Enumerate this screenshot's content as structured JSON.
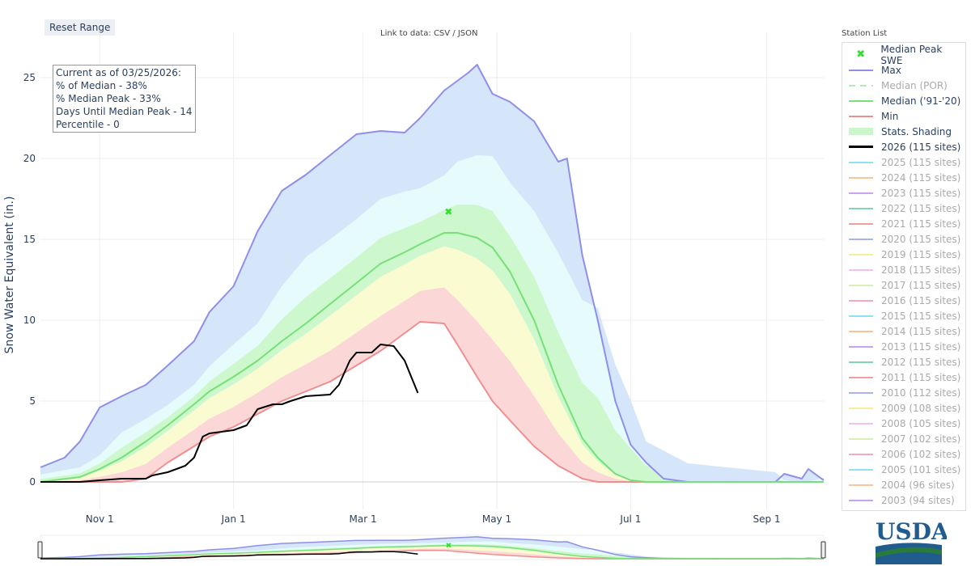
{
  "controls": {
    "reset": "Reset Range",
    "link": "Link to data: CSV / JSON"
  },
  "info": [
    "Current as of 03/25/2026:",
    "% of Median - 38%",
    "% Median Peak - 33%",
    "Days Until Median Peak - 14",
    "Percentile - 0"
  ],
  "legend_title": "Station List",
  "legend": [
    {
      "label": "Median Peak SWE",
      "color": "#33dd33",
      "kind": "marker",
      "on": true
    },
    {
      "label": "Max",
      "color": "#8f8fe8",
      "kind": "line",
      "on": true
    },
    {
      "label": "Median (POR)",
      "color": "#b8e8b8",
      "kind": "dash",
      "on": false
    },
    {
      "label": "Median ('91-'20)",
      "color": "#77e077",
      "kind": "line",
      "on": true
    },
    {
      "label": "Min",
      "color": "#ee8f8f",
      "kind": "line",
      "on": true
    },
    {
      "label": "Stats. Shading",
      "color": "#ccf5cc",
      "kind": "band",
      "on": true
    },
    {
      "label": "2026 (115 sites)",
      "color": "#000000",
      "kind": "line",
      "on": true
    },
    {
      "label": "2025 (115 sites)",
      "color": "#8fe3f0",
      "kind": "line",
      "on": false
    },
    {
      "label": "2024 (115 sites)",
      "color": "#f7c59a",
      "kind": "line",
      "on": false
    },
    {
      "label": "2023 (115 sites)",
      "color": "#c9a4f0",
      "kind": "line",
      "on": false
    },
    {
      "label": "2022 (115 sites)",
      "color": "#7fd8b0",
      "kind": "line",
      "on": false
    },
    {
      "label": "2021 (115 sites)",
      "color": "#f0a0a0",
      "kind": "line",
      "on": false
    },
    {
      "label": "2020 (115 sites)",
      "color": "#a9b4ef",
      "kind": "line",
      "on": false
    },
    {
      "label": "2019 (115 sites)",
      "color": "#f5ef9a",
      "kind": "line",
      "on": false
    },
    {
      "label": "2018 (115 sites)",
      "color": "#f5c0ef",
      "kind": "line",
      "on": false
    },
    {
      "label": "2017 (115 sites)",
      "color": "#d7f0b4",
      "kind": "line",
      "on": false
    },
    {
      "label": "2016 (115 sites)",
      "color": "#f5a8c0",
      "kind": "line",
      "on": false
    },
    {
      "label": "2015 (115 sites)",
      "color": "#8fe3f0",
      "kind": "line",
      "on": false
    },
    {
      "label": "2014 (115 sites)",
      "color": "#f7c59a",
      "kind": "line",
      "on": false
    },
    {
      "label": "2013 (115 sites)",
      "color": "#c9a4f0",
      "kind": "line",
      "on": false
    },
    {
      "label": "2012 (115 sites)",
      "color": "#7fd8b0",
      "kind": "line",
      "on": false
    },
    {
      "label": "2011 (115 sites)",
      "color": "#f0a0a0",
      "kind": "line",
      "on": false
    },
    {
      "label": "2010 (112 sites)",
      "color": "#a9b4ef",
      "kind": "line",
      "on": false
    },
    {
      "label": "2009 (108 sites)",
      "color": "#f5ef9a",
      "kind": "line",
      "on": false
    },
    {
      "label": "2008 (105 sites)",
      "color": "#f5c0ef",
      "kind": "line",
      "on": false
    },
    {
      "label": "2007 (102 sites)",
      "color": "#d7f0b4",
      "kind": "line",
      "on": false
    },
    {
      "label": "2006 (102 sites)",
      "color": "#f5a8c0",
      "kind": "line",
      "on": false
    },
    {
      "label": "2005 (101 sites)",
      "color": "#8fe3f0",
      "kind": "line",
      "on": false
    },
    {
      "label": "2004 (96 sites)",
      "color": "#f7c59a",
      "kind": "line",
      "on": false
    },
    {
      "label": "2003 (94 sites)",
      "color": "#c9a4f0",
      "kind": "line",
      "on": false
    }
  ],
  "logo_text": "USDA",
  "chart_data": {
    "type": "line",
    "title": "",
    "xlabel": "",
    "ylabel": "Snow Water Equivalent (in.)",
    "x_unit": "days since Oct 1",
    "xlim": [
      4,
      361
    ],
    "ylim": [
      -1.2,
      26.5
    ],
    "xticks": [
      {
        "day": 31,
        "label": "Nov 1"
      },
      {
        "day": 92,
        "label": "Jan 1"
      },
      {
        "day": 151,
        "label": "Mar 1"
      },
      {
        "day": 212,
        "label": "May 1"
      },
      {
        "day": 273,
        "label": "Jul 1"
      },
      {
        "day": 335,
        "label": "Sep 1"
      }
    ],
    "yticks": [
      0,
      5,
      10,
      15,
      20,
      25
    ],
    "grid": true,
    "legend": "right",
    "series": {
      "max": [
        [
          4,
          0.9
        ],
        [
          15,
          1.5
        ],
        [
          22,
          2.5
        ],
        [
          31,
          4.6
        ],
        [
          41,
          5.3
        ],
        [
          52,
          6
        ],
        [
          62,
          7.2
        ],
        [
          74,
          8.7
        ],
        [
          81,
          10.5
        ],
        [
          92,
          12.1
        ],
        [
          103,
          15.5
        ],
        [
          114,
          18
        ],
        [
          125,
          19
        ],
        [
          136,
          20.2
        ],
        [
          148,
          21.5
        ],
        [
          159,
          21.7
        ],
        [
          170,
          21.6
        ],
        [
          177,
          22.5
        ],
        [
          188,
          24.2
        ],
        [
          199,
          25.3
        ],
        [
          203,
          25.8
        ],
        [
          210,
          24
        ],
        [
          218,
          23.5
        ],
        [
          229,
          22.3
        ],
        [
          240,
          19.8
        ],
        [
          244,
          20
        ],
        [
          251,
          14
        ],
        [
          258,
          10
        ],
        [
          266,
          5
        ],
        [
          273,
          2.3
        ],
        [
          280,
          1.2
        ],
        [
          288,
          0.2
        ],
        [
          299,
          0
        ],
        [
          339,
          0
        ],
        [
          343,
          0.5
        ],
        [
          351,
          0.2
        ],
        [
          354,
          0.8
        ],
        [
          361,
          0.1
        ]
      ],
      "median": [
        [
          4,
          0
        ],
        [
          22,
          0.3
        ],
        [
          31,
          0.8
        ],
        [
          41,
          1.5
        ],
        [
          52,
          2.5
        ],
        [
          62,
          3.5
        ],
        [
          74,
          4.8
        ],
        [
          81,
          5.6
        ],
        [
          92,
          6.5
        ],
        [
          103,
          7.5
        ],
        [
          114,
          8.7
        ],
        [
          125,
          9.8
        ],
        [
          136,
          11
        ],
        [
          148,
          12.3
        ],
        [
          159,
          13.5
        ],
        [
          170,
          14.2
        ],
        [
          177,
          14.7
        ],
        [
          188,
          15.4
        ],
        [
          194,
          15.4
        ],
        [
          203,
          15.1
        ],
        [
          210,
          14.5
        ],
        [
          218,
          13
        ],
        [
          229,
          10
        ],
        [
          240,
          6
        ],
        [
          251,
          2.7
        ],
        [
          258,
          1.5
        ],
        [
          266,
          0.5
        ],
        [
          273,
          0.1
        ],
        [
          280,
          0
        ],
        [
          299,
          0
        ],
        [
          339,
          0
        ],
        [
          343,
          0
        ],
        [
          351,
          0
        ],
        [
          354,
          0
        ],
        [
          361,
          0
        ]
      ],
      "min": [
        [
          4,
          0
        ],
        [
          22,
          0
        ],
        [
          31,
          0
        ],
        [
          41,
          0
        ],
        [
          52,
          0.2
        ],
        [
          62,
          1.2
        ],
        [
          74,
          2.2
        ],
        [
          81,
          2.8
        ],
        [
          92,
          3.4
        ],
        [
          103,
          4.2
        ],
        [
          114,
          5
        ],
        [
          125,
          5.6
        ],
        [
          136,
          6.2
        ],
        [
          148,
          7.2
        ],
        [
          159,
          8.1
        ],
        [
          170,
          9.2
        ],
        [
          177,
          9.9
        ],
        [
          188,
          9.8
        ],
        [
          194,
          8.5
        ],
        [
          203,
          6.5
        ],
        [
          210,
          5
        ],
        [
          218,
          3.8
        ],
        [
          229,
          2.2
        ],
        [
          240,
          1
        ],
        [
          251,
          0.2
        ],
        [
          258,
          0
        ],
        [
          266,
          0
        ],
        [
          273,
          0
        ],
        [
          280,
          0
        ],
        [
          299,
          0
        ],
        [
          339,
          0
        ],
        [
          343,
          0
        ],
        [
          351,
          0
        ],
        [
          354,
          0
        ],
        [
          361,
          0
        ]
      ],
      "wy2026": [
        [
          4,
          0
        ],
        [
          22,
          0
        ],
        [
          31,
          0.1
        ],
        [
          41,
          0.2
        ],
        [
          52,
          0.2
        ],
        [
          55,
          0.4
        ],
        [
          62,
          0.6
        ],
        [
          70,
          1
        ],
        [
          74,
          1.5
        ],
        [
          78,
          2.8
        ],
        [
          81,
          3
        ],
        [
          92,
          3.2
        ],
        [
          98,
          3.5
        ],
        [
          103,
          4.5
        ],
        [
          110,
          4.8
        ],
        [
          114,
          4.8
        ],
        [
          118,
          5
        ],
        [
          125,
          5.3
        ],
        [
          136,
          5.4
        ],
        [
          140,
          6
        ],
        [
          145,
          7.5
        ],
        [
          148,
          8
        ],
        [
          155,
          8
        ],
        [
          159,
          8.5
        ],
        [
          165,
          8.4
        ],
        [
          170,
          7.5
        ],
        [
          173,
          6.5
        ],
        [
          176,
          5.5
        ]
      ]
    },
    "median_peak": {
      "day": 190,
      "value": 16.75
    },
    "band_colors": [
      "#fcd7d7",
      "#fbfbd2",
      "#cdf7cd",
      "#e6fbfb",
      "#d6e6fa"
    ]
  }
}
